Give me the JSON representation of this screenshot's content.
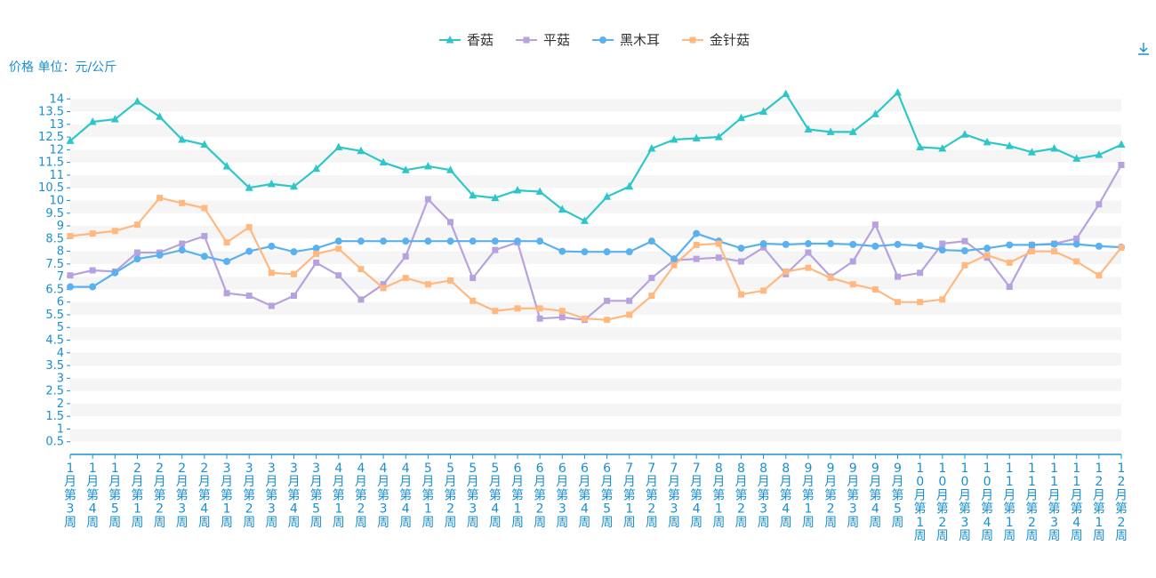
{
  "toolbar": {
    "download_icon": "download-icon"
  },
  "chart_data": {
    "type": "line",
    "ylabel": "价格 单位：元/公斤",
    "ylim": [
      0,
      14.5
    ],
    "yticks": [
      0.5,
      1,
      1.5,
      2,
      2.5,
      3,
      3.5,
      4,
      4.5,
      5,
      5.5,
      6,
      6.5,
      7,
      7.5,
      8,
      8.5,
      9,
      9.5,
      10,
      10.5,
      11,
      11.5,
      12,
      12.5,
      13,
      13.5,
      14
    ],
    "grid": "horizontal-bands",
    "legend_position": "top-center",
    "categories": [
      "1月第3周",
      "1月第4周",
      "1月第5周",
      "2月第1周",
      "2月第2周",
      "2月第3周",
      "2月第4周",
      "3月第1周",
      "3月第2周",
      "3月第3周",
      "3月第4周",
      "3月第5周",
      "4月第1周",
      "4月第2周",
      "4月第3周",
      "4月第4周",
      "5月第1周",
      "5月第2周",
      "5月第3周",
      "5月第4周",
      "6月第1周",
      "6月第2周",
      "6月第3周",
      "6月第4周",
      "6月第5周",
      "7月第1周",
      "7月第2周",
      "7月第3周",
      "7月第4周",
      "8月第1周",
      "8月第2周",
      "8月第3周",
      "8月第4周",
      "9月第1周",
      "9月第2周",
      "9月第3周",
      "9月第4周",
      "9月第5周",
      "10月第1周",
      "10月第2周",
      "10月第3周",
      "10月第4周",
      "11月第1周",
      "11月第2周",
      "11月第3周",
      "11月第4周",
      "12月第1周",
      "12月第2周"
    ],
    "series": [
      {
        "name": "香菇",
        "color": "#2ec7c9",
        "marker": "triangle",
        "values": [
          12.35,
          13.1,
          13.2,
          13.9,
          13.3,
          12.4,
          12.2,
          11.35,
          10.5,
          10.65,
          10.55,
          11.25,
          12.1,
          11.95,
          11.5,
          11.2,
          11.35,
          11.2,
          10.2,
          10.1,
          10.4,
          10.35,
          9.65,
          9.2,
          10.15,
          10.55,
          12.05,
          12.4,
          12.45,
          12.5,
          13.25,
          13.5,
          14.2,
          12.8,
          12.7,
          12.7,
          13.4,
          14.25,
          12.1,
          12.05,
          12.6,
          12.3,
          12.15,
          11.9,
          12.05,
          11.65,
          11.8,
          12.2
        ]
      },
      {
        "name": "平菇",
        "color": "#b6a2de",
        "marker": "square",
        "values": [
          7.05,
          7.25,
          7.2,
          7.95,
          7.95,
          8.3,
          8.6,
          6.35,
          6.25,
          5.85,
          6.25,
          7.55,
          7.05,
          6.1,
          6.7,
          7.8,
          10.05,
          9.15,
          6.95,
          8.05,
          8.35,
          5.35,
          5.4,
          5.3,
          6.05,
          6.05,
          6.95,
          7.65,
          7.7,
          7.75,
          7.6,
          8.15,
          7.1,
          7.95,
          7.0,
          7.6,
          9.05,
          7.0,
          7.15,
          8.3,
          8.4,
          7.75,
          6.6,
          8.25,
          8.3,
          8.5,
          9.85,
          11.4
        ]
      },
      {
        "name": "黑木耳",
        "color": "#5ab1ef",
        "marker": "circle",
        "values": [
          6.6,
          6.6,
          7.15,
          7.7,
          7.85,
          8.05,
          7.8,
          7.6,
          8.0,
          8.2,
          7.98,
          8.12,
          8.4,
          8.4,
          8.4,
          8.4,
          8.4,
          8.4,
          8.4,
          8.4,
          8.4,
          8.4,
          8.0,
          7.98,
          7.98,
          7.98,
          8.4,
          7.7,
          8.7,
          8.4,
          8.12,
          8.3,
          8.27,
          8.3,
          8.3,
          8.27,
          8.2,
          8.27,
          8.22,
          8.05,
          8.02,
          8.12,
          8.25,
          8.25,
          8.28,
          8.28,
          8.2,
          8.16
        ]
      },
      {
        "name": "金针菇",
        "color": "#ffb980",
        "marker": "square",
        "values": [
          8.6,
          8.7,
          8.8,
          9.05,
          10.1,
          9.9,
          9.7,
          8.35,
          8.95,
          7.15,
          7.1,
          7.9,
          8.1,
          7.3,
          6.55,
          6.95,
          6.7,
          6.85,
          6.05,
          5.65,
          5.75,
          5.75,
          5.65,
          5.35,
          5.3,
          5.5,
          6.25,
          7.45,
          8.25,
          8.3,
          6.3,
          6.45,
          7.2,
          7.35,
          6.95,
          6.7,
          6.5,
          6.0,
          6.0,
          6.1,
          7.45,
          7.85,
          7.55,
          8.0,
          8.0,
          7.6,
          7.05,
          8.15
        ]
      }
    ]
  }
}
